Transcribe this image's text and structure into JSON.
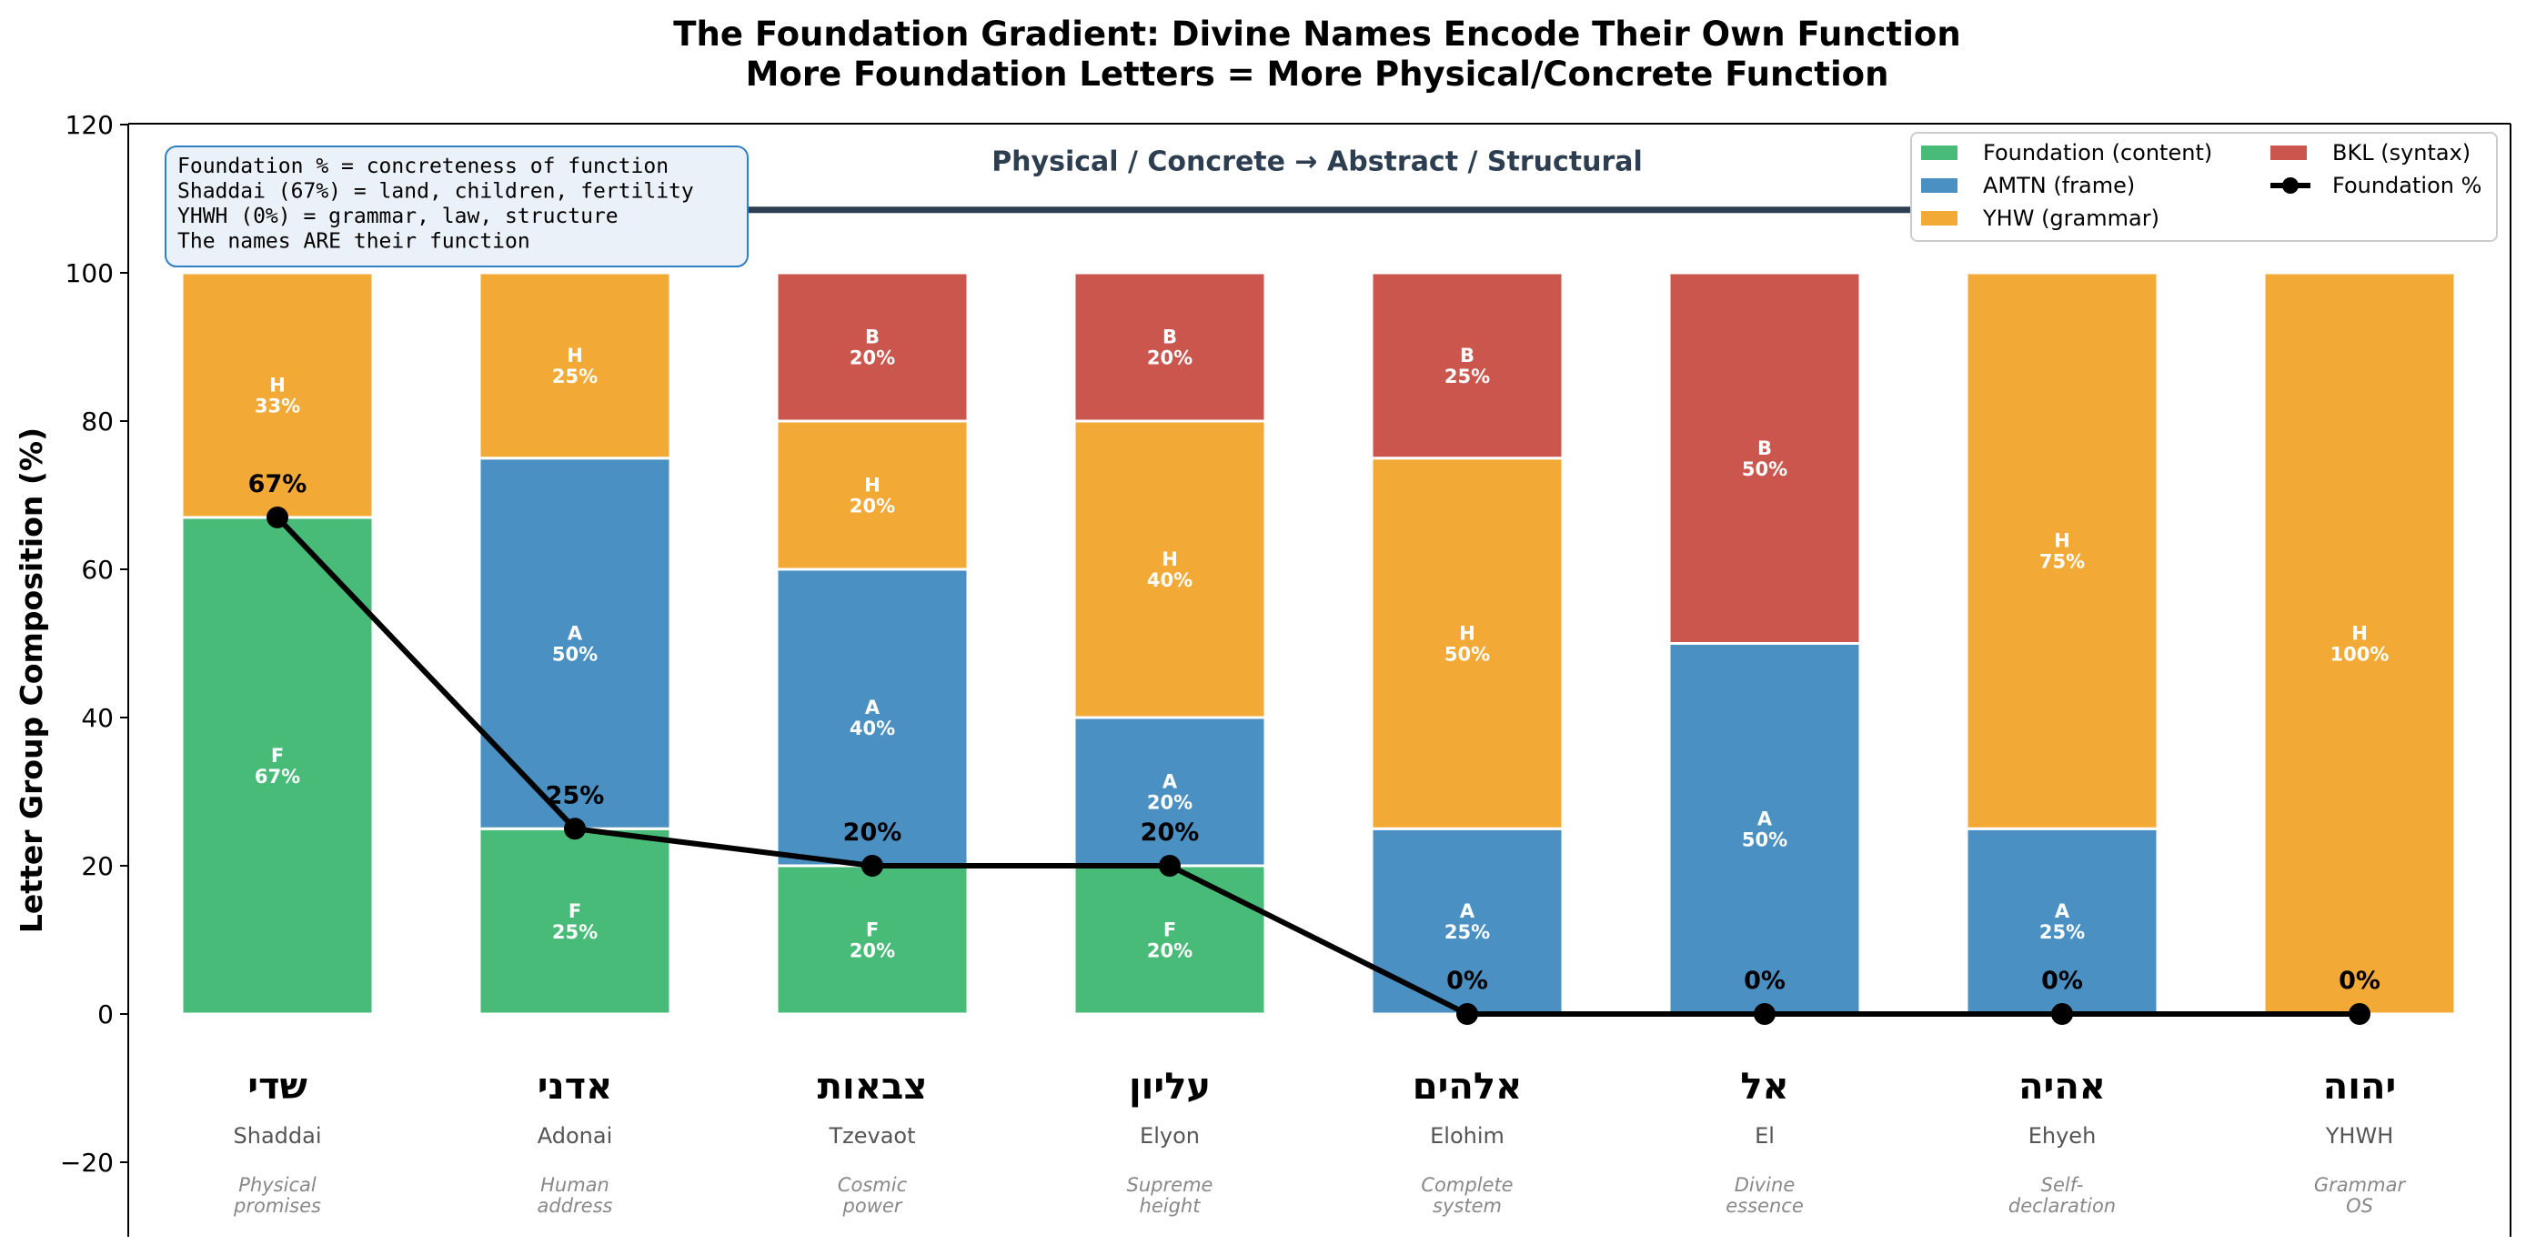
{
  "chart_data": {
    "type": "bar",
    "title_line1": "The Foundation Gradient: Divine Names Encode Their Own Function",
    "title_line2": "More Foundation Letters = More Physical/Concrete Function",
    "ylabel": "Letter Group Composition (%)",
    "ylim": [
      -30,
      120
    ],
    "yticks": [
      -20,
      0,
      20,
      40,
      60,
      80,
      100,
      120
    ],
    "arrow_text": "Physical / Concrete  →  Abstract / Structural",
    "note_lines": [
      "Foundation % = concreteness of function",
      "Shaddai (67%) = land, children, fertility",
      "YHWH (0%) = grammar, law, structure",
      "The names ARE their function"
    ],
    "groups": [
      {
        "key": "F",
        "name": "Foundation (content)",
        "color": "#48bb78"
      },
      {
        "key": "A",
        "name": "AMTN (frame)",
        "color": "#4a90c2"
      },
      {
        "key": "H",
        "name": "YHW (grammar)",
        "color": "#f2a935"
      },
      {
        "key": "B",
        "name": "BKL (syntax)",
        "color": "#cb564d"
      }
    ],
    "line_legend": "Foundation %",
    "categories": [
      {
        "hebrew": "שדי",
        "translit": "Shaddai",
        "function": [
          "Physical",
          "promises"
        ],
        "F": 67,
        "A": 0,
        "H": 33,
        "B": 0,
        "foundation_label": "67%"
      },
      {
        "hebrew": "אדני",
        "translit": "Adonai",
        "function": [
          "Human",
          "address"
        ],
        "F": 25,
        "A": 50,
        "H": 25,
        "B": 0,
        "foundation_label": "25%"
      },
      {
        "hebrew": "צבאות",
        "translit": "Tzevaot",
        "function": [
          "Cosmic",
          "power"
        ],
        "F": 20,
        "A": 40,
        "H": 20,
        "B": 20,
        "foundation_label": "20%"
      },
      {
        "hebrew": "עליון",
        "translit": "Elyon",
        "function": [
          "Supreme",
          "height"
        ],
        "F": 20,
        "A": 20,
        "H": 40,
        "B": 20,
        "foundation_label": "20%"
      },
      {
        "hebrew": "אלהים",
        "translit": "Elohim",
        "function": [
          "Complete",
          "system"
        ],
        "F": 0,
        "A": 25,
        "H": 50,
        "B": 25,
        "foundation_label": "0%"
      },
      {
        "hebrew": "אל",
        "translit": "El",
        "function": [
          "Divine",
          "essence"
        ],
        "F": 0,
        "A": 50,
        "H": 0,
        "B": 50,
        "foundation_label": "0%"
      },
      {
        "hebrew": "אהיה",
        "translit": "Ehyeh",
        "function": [
          "Self-",
          "declaration"
        ],
        "F": 0,
        "A": 25,
        "H": 75,
        "B": 0,
        "foundation_label": "0%"
      },
      {
        "hebrew": "יהוה",
        "translit": "YHWH",
        "function": [
          "Grammar",
          "OS"
        ],
        "F": 0,
        "A": 0,
        "H": 100,
        "B": 0,
        "foundation_label": "0%"
      }
    ]
  }
}
